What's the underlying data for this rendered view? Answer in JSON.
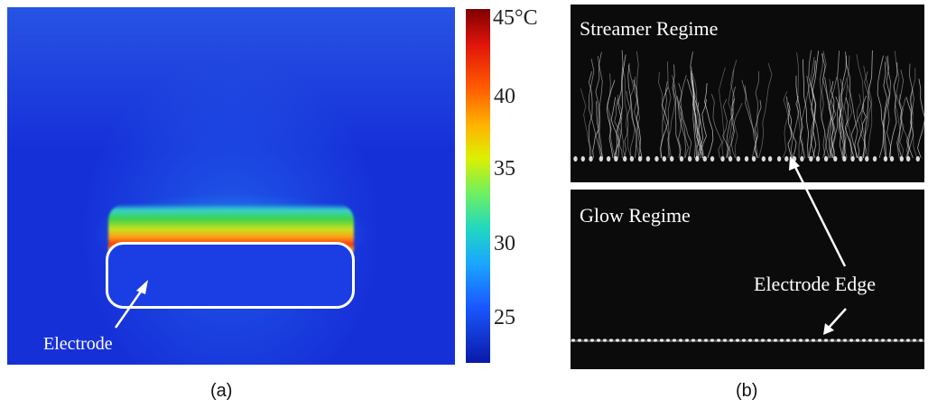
{
  "panel_a": {
    "electrode_label": "Electrode",
    "caption": "(a)"
  },
  "colorbar": {
    "ticks": [
      {
        "label": "45°C",
        "value": 45
      },
      {
        "label": "40",
        "value": 40
      },
      {
        "label": "35",
        "value": 35
      },
      {
        "label": "30",
        "value": 30
      },
      {
        "label": "25",
        "value": 25
      }
    ]
  },
  "panel_b": {
    "streamer_title": "Streamer Regime",
    "glow_title": "Glow Regime",
    "electrode_edge_label": "Electrode Edge",
    "caption": "(b)"
  }
}
